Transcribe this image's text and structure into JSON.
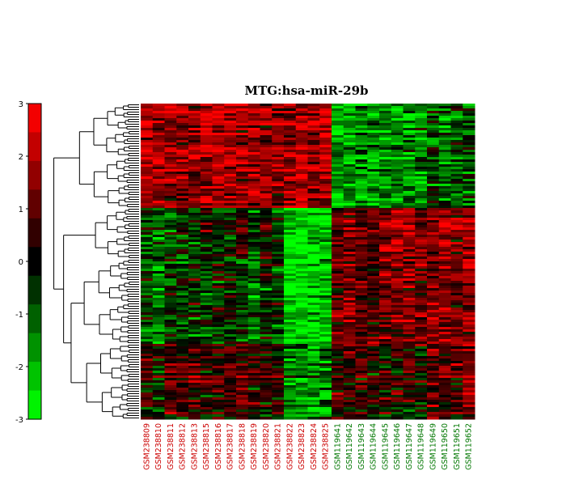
{
  "chart_data": {
    "type": "heatmap",
    "title": "MTG:hsa-miR-29b",
    "xlabel": "",
    "ylabel": "",
    "colorbar": {
      "min": -3,
      "max": 3,
      "ticks": [
        "3",
        "2",
        "1",
        "0",
        "-1",
        "-2",
        "-3"
      ],
      "low_color": "#00ff00",
      "mid_color": "#000000",
      "high_color": "#ff0000"
    },
    "columns": [
      {
        "name": "GSM238809",
        "group": "red"
      },
      {
        "name": "GSM238810",
        "group": "red"
      },
      {
        "name": "GSM238811",
        "group": "red"
      },
      {
        "name": "GSM238812",
        "group": "red"
      },
      {
        "name": "GSM238813",
        "group": "red"
      },
      {
        "name": "GSM238815",
        "group": "red"
      },
      {
        "name": "GSM238816",
        "group": "red"
      },
      {
        "name": "GSM238817",
        "group": "red"
      },
      {
        "name": "GSM238818",
        "group": "red"
      },
      {
        "name": "GSM238819",
        "group": "red"
      },
      {
        "name": "GSM238820",
        "group": "red"
      },
      {
        "name": "GSM238821",
        "group": "red"
      },
      {
        "name": "GSM238822",
        "group": "red"
      },
      {
        "name": "GSM238823",
        "group": "red"
      },
      {
        "name": "GSM238824",
        "group": "red"
      },
      {
        "name": "GSM238825",
        "group": "red"
      },
      {
        "name": "GSM119641",
        "group": "green"
      },
      {
        "name": "GSM119642",
        "group": "green"
      },
      {
        "name": "GSM119643",
        "group": "green"
      },
      {
        "name": "GSM119644",
        "group": "green"
      },
      {
        "name": "GSM119645",
        "group": "green"
      },
      {
        "name": "GSM119646",
        "group": "green"
      },
      {
        "name": "GSM119647",
        "group": "green"
      },
      {
        "name": "GSM119648",
        "group": "green"
      },
      {
        "name": "GSM119649",
        "group": "green"
      },
      {
        "name": "GSM119650",
        "group": "green"
      },
      {
        "name": "GSM119651",
        "group": "green"
      },
      {
        "name": "GSM119652",
        "group": "green"
      }
    ],
    "group_colors": {
      "red": "#cc0000",
      "green": "#007700"
    },
    "row_count": 130,
    "row_clusters": [
      {
        "fraction": 0.33,
        "profile": [
          2.0,
          1.9,
          1.8,
          1.7,
          1.7,
          1.9,
          2.0,
          1.8,
          1.6,
          1.7,
          1.5,
          1.6,
          1.7,
          1.9,
          1.8,
          2.0,
          -2.0,
          -1.8,
          -1.8,
          -1.9,
          -1.6,
          -1.5,
          -1.6,
          -1.5,
          -0.5,
          -1.2,
          -1.0,
          -0.8
        ]
      },
      {
        "fraction": 0.16,
        "profile": [
          -0.9,
          -1.0,
          -0.4,
          -0.5,
          -0.6,
          0.3,
          -0.5,
          -0.2,
          0.4,
          -0.7,
          0.3,
          -0.6,
          -2.2,
          -2.3,
          -2.2,
          -2.1,
          1.2,
          1.4,
          1.0,
          1.0,
          1.6,
          2.0,
          1.8,
          1.5,
          1.3,
          2.0,
          1.5,
          2.0
        ]
      },
      {
        "fraction": 0.27,
        "profile": [
          -0.8,
          -1.3,
          -0.4,
          -0.6,
          -0.3,
          -0.7,
          -0.2,
          0.1,
          -0.3,
          -1.1,
          0.0,
          -0.5,
          -2.4,
          -2.6,
          -2.4,
          -2.0,
          1.2,
          1.3,
          1.1,
          0.9,
          1.3,
          1.6,
          1.7,
          1.3,
          1.6,
          1.5,
          1.3,
          1.8
        ]
      },
      {
        "fraction": 0.24,
        "profile": [
          0.3,
          -0.2,
          0.9,
          0.6,
          0.8,
          0.5,
          0.7,
          0.6,
          0.9,
          0.3,
          0.4,
          0.6,
          -1.5,
          -1.6,
          -1.8,
          -1.2,
          0.8,
          0.8,
          0.5,
          0.4,
          0.3,
          0.6,
          0.5,
          0.3,
          1.2,
          0.9,
          1.0,
          1.4
        ]
      }
    ]
  }
}
